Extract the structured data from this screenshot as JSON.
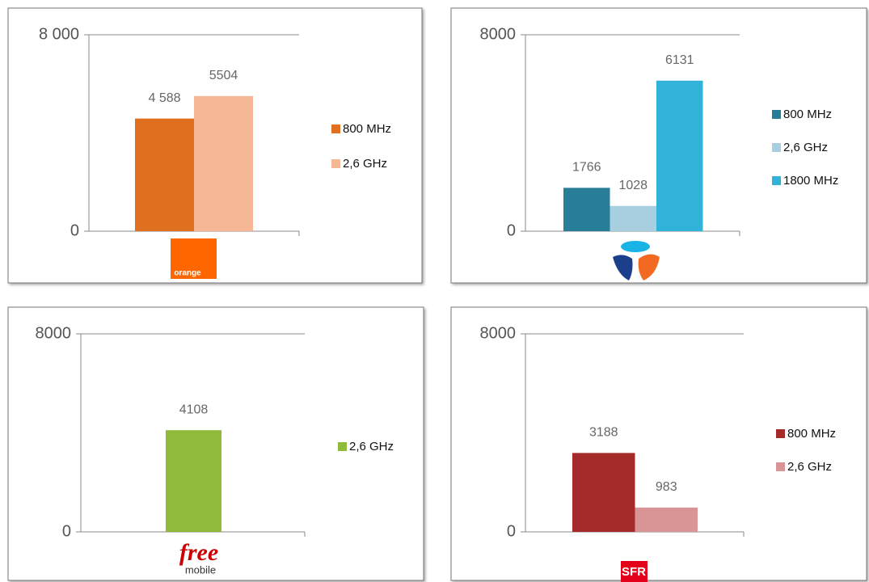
{
  "chart_data": [
    {
      "type": "bar",
      "categories": [
        null
      ],
      "ylim": [
        0,
        8000
      ],
      "yticks": [
        0,
        {
          "value": 8000,
          "label": "8 000"
        }
      ],
      "series": [
        {
          "name": "800 MHz",
          "color": "#e07020",
          "values": [
            4588
          ],
          "value_labels": [
            "4 588"
          ]
        },
        {
          "name": "2,6 GHz",
          "color": "#f6b797",
          "values": [
            5504
          ]
        }
      ],
      "logo": "orange"
    },
    {
      "type": "bar",
      "categories": [
        null
      ],
      "ylim": [
        0,
        8000
      ],
      "yticks": [
        0,
        8000
      ],
      "series": [
        {
          "name": "800 MHz",
          "color": "#287d99",
          "values": [
            1766
          ]
        },
        {
          "name": "2,6 GHz",
          "color": "#a8cfe0",
          "values": [
            1028
          ]
        },
        {
          "name": "1800 MHz",
          "color": "#31b2d9",
          "values": [
            6131
          ]
        }
      ]
    },
    {
      "type": "bar",
      "categories": [
        null
      ],
      "ylim": [
        0,
        8000
      ],
      "yticks": [
        0,
        8000
      ],
      "series": [
        {
          "name": "2,6 GHz",
          "color": "#90bb3a",
          "values": [
            4108
          ]
        }
      ],
      "logo": "free",
      "logo_sub": "mobile"
    },
    {
      "type": "bar",
      "categories": [
        null
      ],
      "ylim": [
        0,
        8000
      ],
      "yticks": [
        0,
        8000
      ],
      "series": [
        {
          "name": "800 MHz",
          "color": "#a52a2a",
          "values": [
            3188
          ]
        },
        {
          "name": "2,6 GHz",
          "color": "#d99595",
          "values": [
            983
          ]
        }
      ],
      "logo": "SFR"
    }
  ]
}
